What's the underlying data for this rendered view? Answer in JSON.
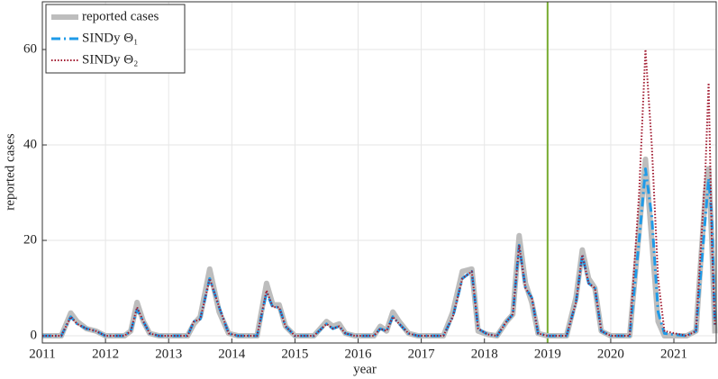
{
  "chart_data": {
    "type": "line",
    "x_label": "year",
    "y_label": "reported cases",
    "x": [
      2011.0,
      2011.3,
      2011.45,
      2011.55,
      2011.7,
      2011.85,
      2012.0,
      2012.3,
      2012.4,
      2012.5,
      2012.6,
      2012.7,
      2012.85,
      2013.3,
      2013.4,
      2013.5,
      2013.65,
      2013.8,
      2013.95,
      2014.1,
      2014.4,
      2014.55,
      2014.65,
      2014.75,
      2014.85,
      2015.0,
      2015.3,
      2015.5,
      2015.6,
      2015.7,
      2015.8,
      2015.95,
      2016.25,
      2016.35,
      2016.45,
      2016.55,
      2016.65,
      2016.8,
      2016.95,
      2017.35,
      2017.5,
      2017.65,
      2017.8,
      2017.9,
      2018.05,
      2018.2,
      2018.35,
      2018.45,
      2018.55,
      2018.65,
      2018.75,
      2018.85,
      2019.0,
      2019.3,
      2019.45,
      2019.55,
      2019.65,
      2019.75,
      2019.85,
      2020.0,
      2020.3,
      2020.45,
      2020.55,
      2020.65,
      2020.75,
      2020.85,
      2021.2,
      2021.35,
      2021.5,
      2021.55,
      2021.6,
      2021.65
    ],
    "series": [
      {
        "name": "reported cases",
        "color": "#bdbdbd",
        "style": "solid",
        "values": [
          0,
          0,
          4.8,
          3,
          1.5,
          1,
          0,
          0,
          1,
          7,
          3,
          0.5,
          0,
          0,
          2.5,
          4,
          14,
          5,
          0.5,
          0,
          0,
          11,
          6.5,
          6.5,
          2,
          0,
          0,
          3,
          2,
          2.5,
          0.5,
          0,
          0,
          2,
          1,
          5,
          3,
          0.5,
          0,
          0,
          5,
          13.5,
          14,
          1,
          0.3,
          0,
          3,
          4.5,
          21,
          11,
          7,
          0.5,
          0,
          0,
          8,
          18,
          12,
          10,
          1,
          0,
          0,
          22,
          37,
          20,
          3,
          0,
          0,
          1,
          30,
          35,
          20,
          0.5
        ]
      },
      {
        "name": "SINDy Θ₁",
        "color": "#1f9be8",
        "style": "dashdot",
        "values": [
          0,
          0,
          4,
          2.5,
          1.5,
          1,
          0,
          0,
          1,
          5.5,
          3,
          0.5,
          0,
          0,
          3,
          3.5,
          12,
          6,
          0.5,
          0,
          0,
          9,
          6,
          6,
          2,
          0,
          0,
          2.5,
          1.5,
          2,
          0.5,
          0,
          0,
          1.5,
          1,
          4,
          2.5,
          0.5,
          0,
          0,
          4,
          12,
          13.5,
          1.5,
          0.3,
          0,
          3,
          4.5,
          19,
          10,
          8,
          0.5,
          0,
          0,
          7,
          17,
          11,
          10,
          1,
          0,
          0,
          20,
          35,
          25,
          5,
          0.5,
          0,
          1,
          25,
          33,
          25,
          2
        ]
      },
      {
        "name": "SINDy Θ₂",
        "color": "#a0182e",
        "style": "dotted",
        "values": [
          0,
          0,
          4,
          2.5,
          1.5,
          1,
          0,
          0,
          1,
          6,
          3,
          0.5,
          0,
          0,
          3,
          3.5,
          12,
          6,
          0.5,
          0,
          0,
          9.5,
          6,
          6,
          2,
          0,
          0,
          2.5,
          1.5,
          2,
          0.5,
          0,
          0,
          1.5,
          1,
          4,
          2.5,
          0.5,
          0,
          0,
          4,
          12,
          13.5,
          1.5,
          0.3,
          0,
          3,
          4.5,
          19,
          10,
          8,
          0.5,
          0,
          0,
          7,
          17,
          11,
          10,
          1,
          0,
          0,
          30,
          60,
          40,
          12,
          1,
          0,
          1,
          35,
          53,
          20,
          2
        ]
      }
    ],
    "xlim": [
      2011,
      2021.67
    ],
    "xticks": [
      2011,
      2012,
      2013,
      2014,
      2015,
      2016,
      2017,
      2018,
      2019,
      2020,
      2021
    ],
    "ylim": [
      -1.5,
      70
    ],
    "yticks": [
      0,
      20,
      40,
      60
    ],
    "grid": true,
    "legend": "upper left",
    "vline": {
      "x": 2019,
      "color": "#77ac30"
    }
  }
}
